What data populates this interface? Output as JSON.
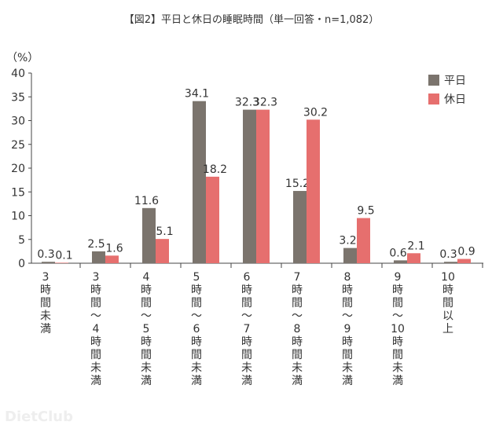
{
  "title": "【図2】平日と休日の睡眠時間（単一回答・n=1,082）",
  "watermark": "DietClub",
  "chart_data": {
    "type": "bar",
    "title": "【図2】平日と休日の睡眠時間（単一回答・n=1,082）",
    "ylabel": "（%）",
    "xlabel": "",
    "ylim": [
      0,
      40
    ],
    "yticks": [
      0,
      5,
      10,
      15,
      20,
      25,
      30,
      35,
      40
    ],
    "grid": false,
    "legend_position": "top-right",
    "categories": [
      [
        "3",
        "時",
        "間",
        "未",
        "満"
      ],
      [
        "3",
        "時",
        "間",
        "〜",
        "4",
        "時",
        "間",
        "未",
        "満"
      ],
      [
        "4",
        "時",
        "間",
        "〜",
        "5",
        "時",
        "間",
        "未",
        "満"
      ],
      [
        "5",
        "時",
        "間",
        "〜",
        "6",
        "時",
        "間",
        "未",
        "満"
      ],
      [
        "6",
        "時",
        "間",
        "〜",
        "7",
        "時",
        "間",
        "未",
        "満"
      ],
      [
        "7",
        "時",
        "間",
        "〜",
        "8",
        "時",
        "間",
        "未",
        "満"
      ],
      [
        "8",
        "時",
        "間",
        "〜",
        "9",
        "時",
        "間",
        "未",
        "満"
      ],
      [
        "9",
        "時",
        "間",
        "〜",
        "10",
        "時",
        "間",
        "未",
        "満"
      ],
      [
        "10",
        "時",
        "間",
        "以",
        "上"
      ]
    ],
    "series": [
      {
        "name": "平日",
        "color": "#7b746d",
        "values": [
          0.3,
          2.5,
          11.6,
          34.1,
          32.3,
          15.2,
          3.2,
          0.6,
          0.3
        ]
      },
      {
        "name": "休日",
        "color": "#e66f6e",
        "values": [
          0.1,
          1.6,
          5.1,
          18.2,
          32.3,
          30.2,
          9.5,
          2.1,
          0.9
        ]
      }
    ]
  }
}
